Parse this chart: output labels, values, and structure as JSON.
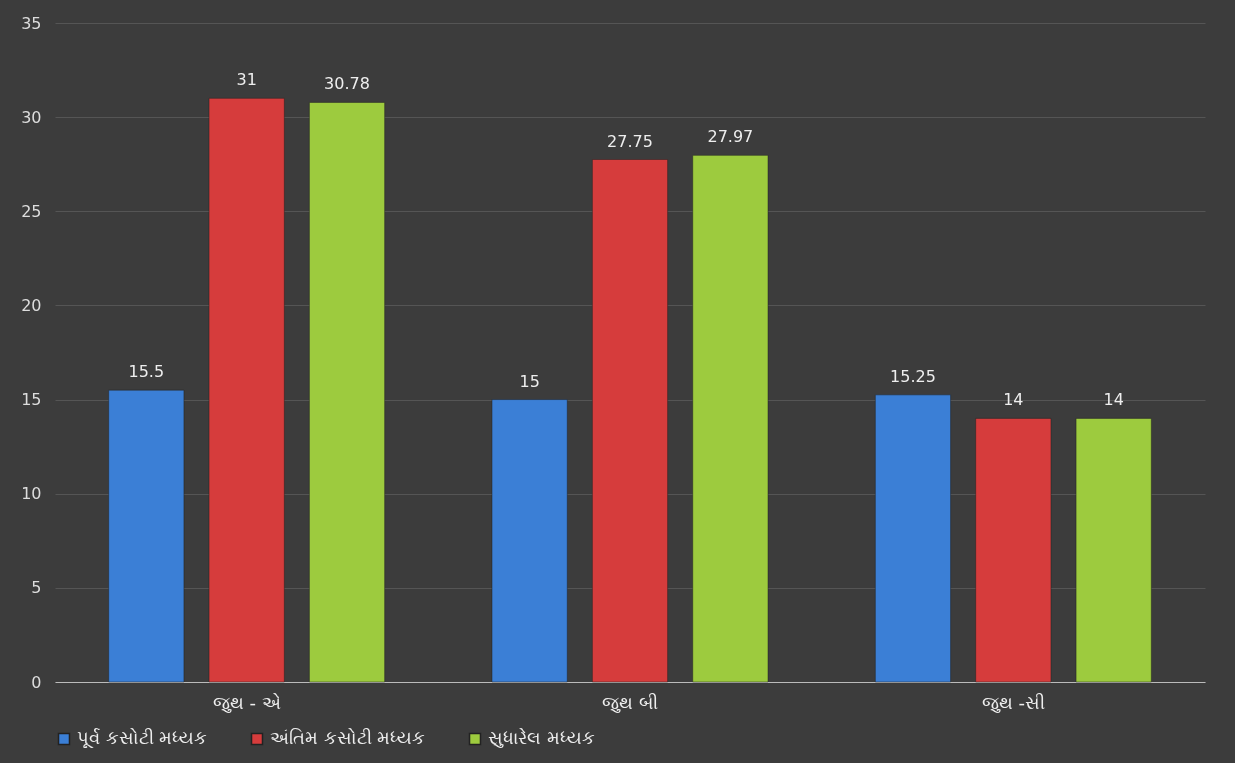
{
  "chart_data": {
    "type": "bar",
    "categories": [
      "જુથ - એ",
      "જુથ બી",
      "જુથ -સી"
    ],
    "series": [
      {
        "name": "પૂર્વ કસોટી મધ્યક",
        "color": "#3b7fd6",
        "values": [
          15.5,
          15,
          15.25
        ]
      },
      {
        "name": "અંતિમ કસોટી મધ્યક",
        "color": "#d63c3c",
        "values": [
          31,
          27.75,
          14
        ]
      },
      {
        "name": "સુધારેલ મધ્યક",
        "color": "#9dcb3e",
        "values": [
          30.78,
          27.97,
          14
        ]
      }
    ],
    "ylim": [
      0,
      35
    ],
    "yticks": [
      0,
      5,
      10,
      15,
      20,
      25,
      30,
      35
    ],
    "grid": "y",
    "legend": "bottom",
    "data_labels": true
  }
}
